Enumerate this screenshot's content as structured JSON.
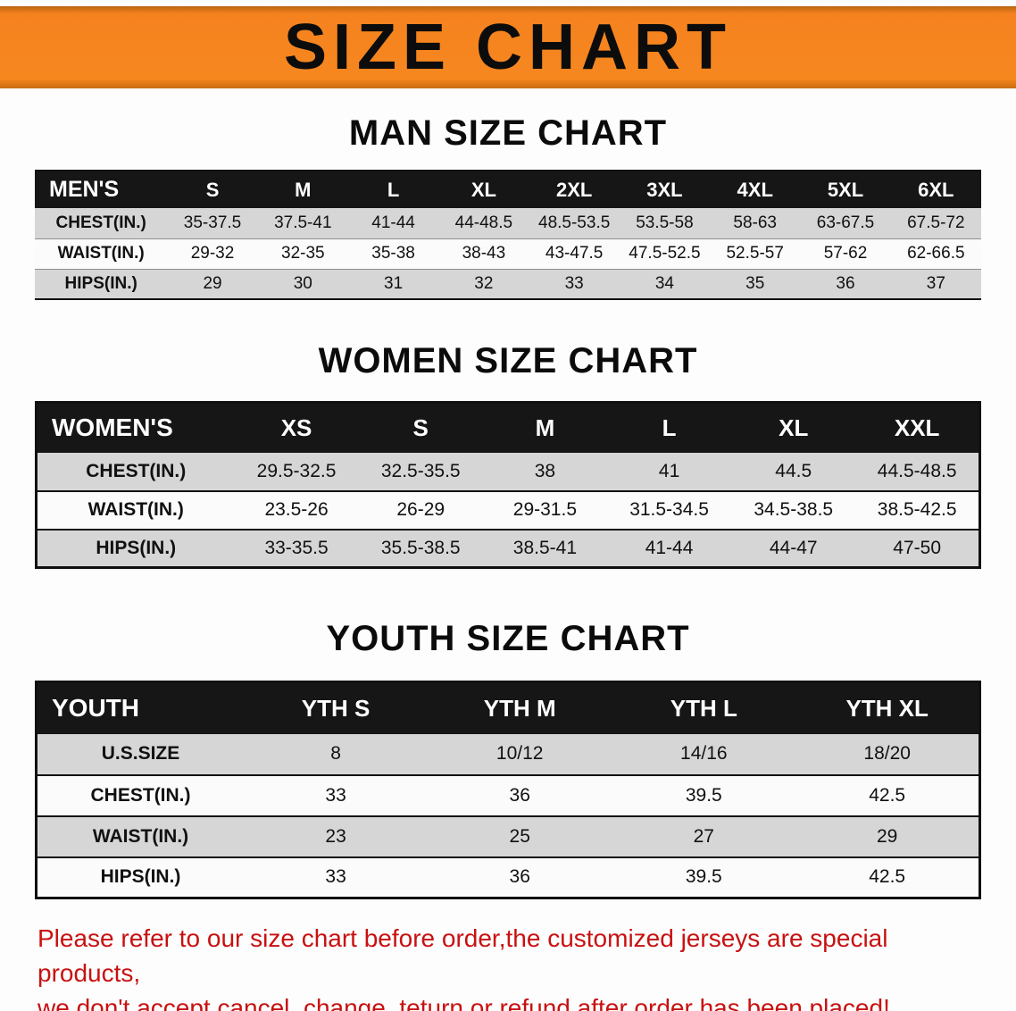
{
  "banner": {
    "title": "SIZE CHART",
    "bg_color": "#f5821f"
  },
  "colors": {
    "table_header_bg": "#161616",
    "row_stripe": "#d6d6d6",
    "disclaimer_text": "#c81111"
  },
  "chart_data": [
    {
      "type": "table",
      "title": "MAN SIZE CHART",
      "columns": [
        "MEN'S",
        "S",
        "M",
        "L",
        "XL",
        "2XL",
        "3XL",
        "4XL",
        "5XL",
        "6XL"
      ],
      "rows": [
        [
          "CHEST(IN.)",
          "35-37.5",
          "37.5-41",
          "41-44",
          "44-48.5",
          "48.5-53.5",
          "53.5-58",
          "58-63",
          "63-67.5",
          "67.5-72"
        ],
        [
          "WAIST(IN.)",
          "29-32",
          "32-35",
          "35-38",
          "38-43",
          "43-47.5",
          "47.5-52.5",
          "52.5-57",
          "57-62",
          "62-66.5"
        ],
        [
          "HIPS(IN.)",
          "29",
          "30",
          "31",
          "32",
          "33",
          "34",
          "35",
          "36",
          "37"
        ]
      ]
    },
    {
      "type": "table",
      "title": "WOMEN SIZE CHART",
      "columns": [
        "WOMEN'S",
        "XS",
        "S",
        "M",
        "L",
        "XL",
        "XXL"
      ],
      "rows": [
        [
          "CHEST(IN.)",
          "29.5-32.5",
          "32.5-35.5",
          "38",
          "41",
          "44.5",
          "44.5-48.5"
        ],
        [
          "WAIST(IN.)",
          "23.5-26",
          "26-29",
          "29-31.5",
          "31.5-34.5",
          "34.5-38.5",
          "38.5-42.5"
        ],
        [
          "HIPS(IN.)",
          "33-35.5",
          "35.5-38.5",
          "38.5-41",
          "41-44",
          "44-47",
          "47-50"
        ]
      ]
    },
    {
      "type": "table",
      "title": "YOUTH SIZE CHART",
      "columns": [
        "YOUTH",
        "YTH S",
        "YTH M",
        "YTH L",
        "YTH XL"
      ],
      "rows": [
        [
          "U.S.SIZE",
          "8",
          "10/12",
          "14/16",
          "18/20"
        ],
        [
          "CHEST(IN.)",
          "33",
          "36",
          "39.5",
          "42.5"
        ],
        [
          "WAIST(IN.)",
          "23",
          "25",
          "27",
          "29"
        ],
        [
          "HIPS(IN.)",
          "33",
          "36",
          "39.5",
          "42.5"
        ]
      ]
    }
  ],
  "footer": {
    "lines": [
      "Please refer to our size chart before order,the customized jerseys are special products,",
      "we don't accept cancel, change, teturn or refund after order has been placed!"
    ]
  }
}
